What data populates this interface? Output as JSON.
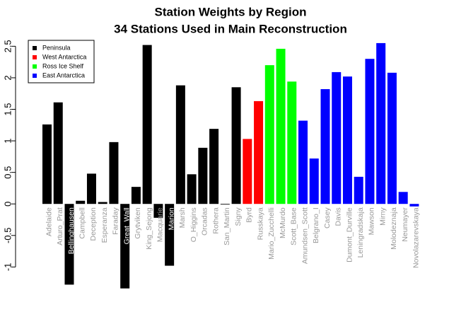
{
  "chart_data": {
    "type": "bar",
    "title": "Station Weights by Region",
    "subtitle": "34 Stations Used in Main Reconstruction",
    "categories": [
      "Adelaide",
      "Arturo_Prat",
      "Bellinghausen",
      "Campbell",
      "Deception",
      "Esperanza",
      "Faraday",
      "Great_Wall",
      "Grytviken",
      "King_Sejong",
      "Macquarie",
      "Marion",
      "Marsh",
      "O_Higgins",
      "Orcadas",
      "Rothera",
      "San_Martin",
      "Signy",
      "Byrd",
      "Russkaya",
      "Mario_Zucchelli",
      "McMurdo",
      "Scott_Base",
      "Amundsen_Scott",
      "Belgrano_I",
      "Casey",
      "Davis",
      "Dumont_Durville",
      "Leningradskaja",
      "Mawson",
      "Mirny",
      "Molodeznaja",
      "Neumayer",
      "Novolazarevskaya"
    ],
    "values": [
      1.26,
      1.61,
      -1.28,
      0.05,
      0.48,
      0.03,
      0.98,
      -1.34,
      0.27,
      2.52,
      -0.22,
      -0.98,
      1.88,
      0.47,
      0.89,
      1.19,
      -0.01,
      1.85,
      1.03,
      1.63,
      2.2,
      2.46,
      1.94,
      1.32,
      0.72,
      1.82,
      2.09,
      2.02,
      0.43,
      2.3,
      2.55,
      2.08,
      0.19,
      -0.04
    ],
    "colors": [
      "#000000",
      "#000000",
      "#000000",
      "#000000",
      "#000000",
      "#000000",
      "#000000",
      "#000000",
      "#000000",
      "#000000",
      "#000000",
      "#000000",
      "#000000",
      "#000000",
      "#000000",
      "#000000",
      "#000000",
      "#000000",
      "#ff0000",
      "#ff0000",
      "#00ff00",
      "#00ff00",
      "#00ff00",
      "#0000ff",
      "#0000ff",
      "#0000ff",
      "#0000ff",
      "#0000ff",
      "#0000ff",
      "#0000ff",
      "#0000ff",
      "#0000ff",
      "#0000ff",
      "#0000ff"
    ],
    "legend": [
      {
        "name": "Peninsula",
        "color": "#000000"
      },
      {
        "name": "West Antarctica",
        "color": "#ff0000"
      },
      {
        "name": "Ross Ice Shelf",
        "color": "#00ff00"
      },
      {
        "name": "East Antarctica",
        "color": "#0000ff"
      }
    ],
    "ylim": [
      -1.4,
      2.65
    ],
    "yticks": [
      -1.0,
      -0.5,
      0.0,
      0.5,
      1.0,
      1.5,
      2.0,
      2.5
    ]
  }
}
